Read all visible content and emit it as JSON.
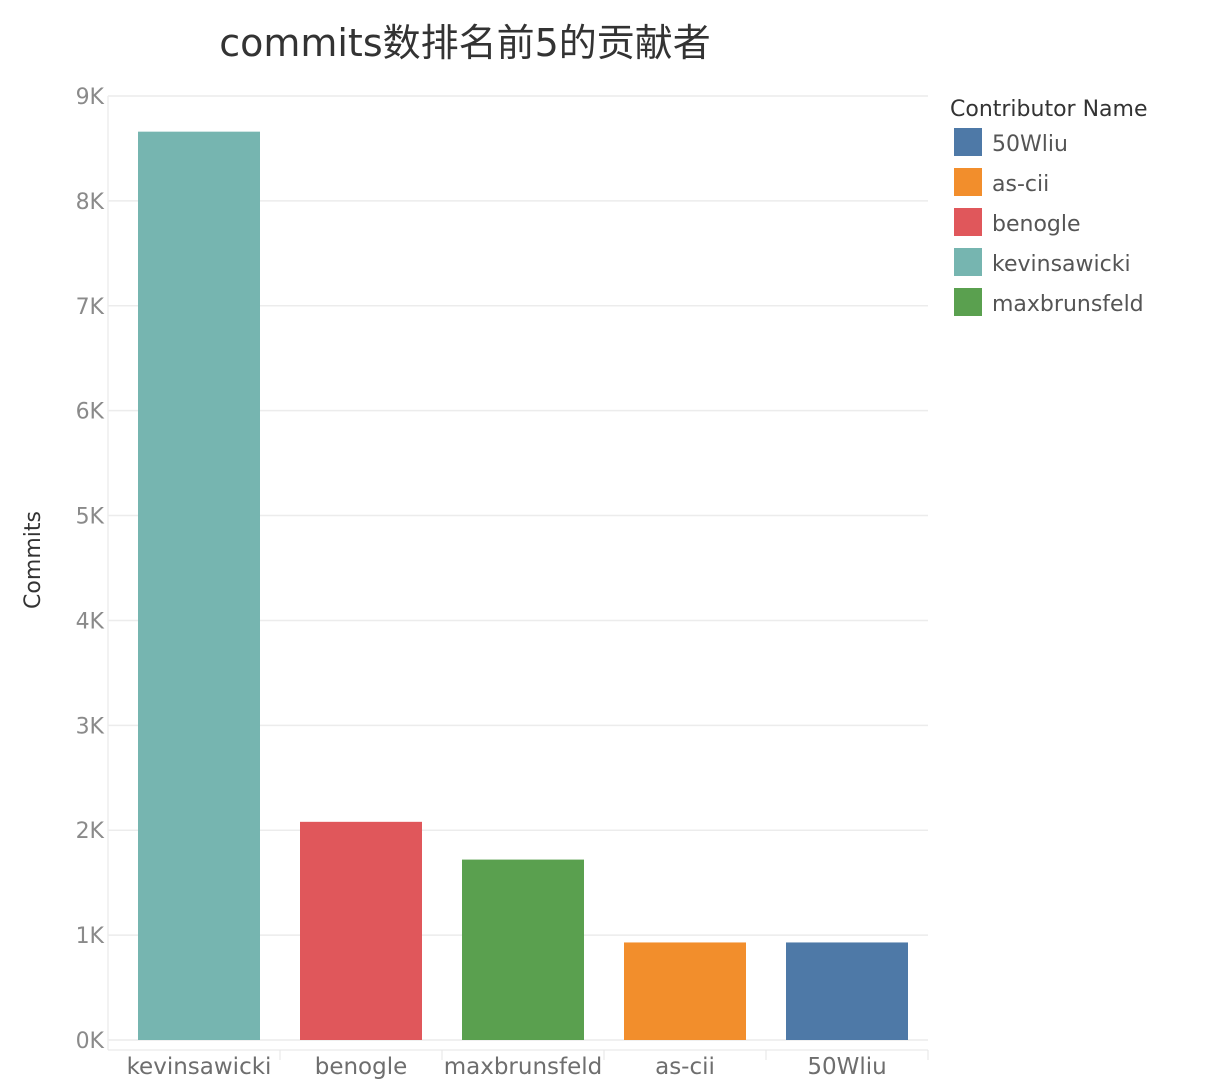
{
  "chart_data": {
    "type": "bar",
    "title": "commits数排名前5的贡献者",
    "xlabel": "",
    "ylabel": "Commits",
    "categories": [
      "kevinsawicki",
      "benogle",
      "maxbrunsfeld",
      "as-cii",
      "50Wliu"
    ],
    "values": [
      8660,
      2080,
      1720,
      930,
      930
    ],
    "bar_colors": [
      "#76b5b0",
      "#e0575b",
      "#5aa04f",
      "#f28e2c",
      "#4e79a7"
    ],
    "ylim": [
      0,
      9000
    ],
    "yticks": [
      0,
      1000,
      2000,
      3000,
      4000,
      5000,
      6000,
      7000,
      8000,
      9000
    ],
    "ytick_labels": [
      "0K",
      "1K",
      "2K",
      "3K",
      "4K",
      "5K",
      "6K",
      "7K",
      "8K",
      "9K"
    ],
    "grid": true,
    "legend": {
      "title": "Contributor Name",
      "position": "right",
      "items": [
        {
          "label": "50Wliu",
          "color": "#4e79a7"
        },
        {
          "label": "as-cii",
          "color": "#f28e2c"
        },
        {
          "label": "benogle",
          "color": "#e0575b"
        },
        {
          "label": "kevinsawicki",
          "color": "#76b5b0"
        },
        {
          "label": "maxbrunsfeld",
          "color": "#5aa04f"
        }
      ]
    }
  }
}
